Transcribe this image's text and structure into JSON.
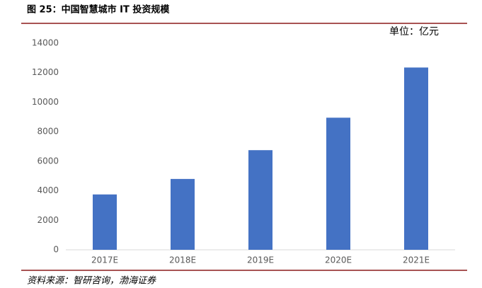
{
  "chart_data": {
    "type": "bar",
    "title": "图 25：中国智慧城市 IT 投资规模",
    "unit": "单位：亿元",
    "source": "资料来源：智研咨询，渤海证券",
    "categories": [
      "2017E",
      "2018E",
      "2019E",
      "2020E",
      "2021E"
    ],
    "values": [
      3750,
      4800,
      6750,
      8950,
      12350
    ],
    "color": "#4472c4",
    "ylim": [
      0,
      14000
    ],
    "yticks": [
      0,
      2000,
      4000,
      6000,
      8000,
      10000,
      12000,
      14000
    ],
    "grid": false
  }
}
